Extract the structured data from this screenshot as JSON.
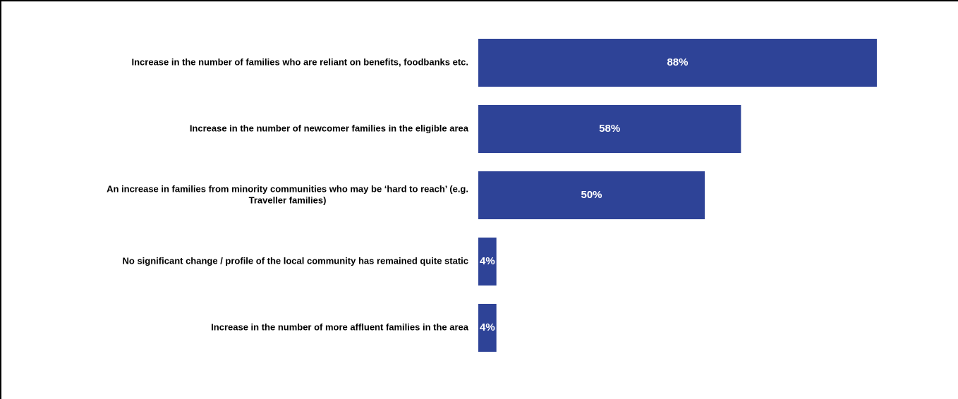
{
  "chart_data": {
    "type": "bar",
    "orientation": "horizontal",
    "categories": [
      [
        "Increase in the number of families who are reliant on benefits, foodbanks etc."
      ],
      [
        "Increase in the number of newcomer families in the eligible area"
      ],
      [
        "An increase in families from minority communities who may be ‘hard to reach’ (e.g.",
        "Traveller families)"
      ],
      [
        "No significant change / profile of the local community has remained quite static"
      ],
      [
        "Increase in the number of more affluent families in the area"
      ]
    ],
    "values": [
      88,
      58,
      50,
      4,
      4
    ],
    "value_labels": [
      "88%",
      "58%",
      "50%",
      "4%",
      "4%"
    ],
    "xlim": [
      0,
      100
    ],
    "bar_color": "#2e4397",
    "grid": false,
    "legend": "none"
  }
}
